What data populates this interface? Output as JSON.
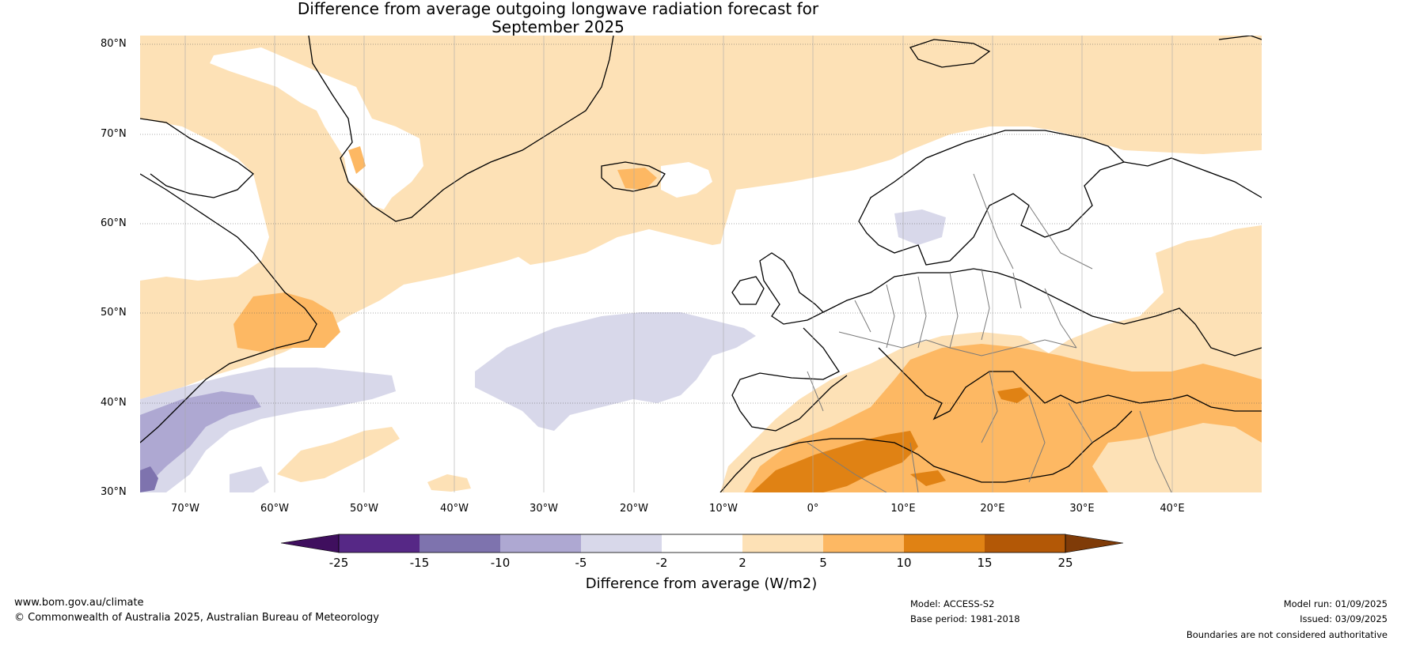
{
  "title": {
    "line1": "Difference from average outgoing longwave radiation forecast for",
    "line2": "September 2025"
  },
  "map": {
    "lat_labels": [
      "80°N",
      "70°N",
      "60°N",
      "50°N",
      "40°N",
      "30°N"
    ],
    "lon_labels": [
      "70°W",
      "60°W",
      "50°W",
      "40°W",
      "30°W",
      "20°W",
      "10°W",
      "0°",
      "10°E",
      "20°E",
      "30°E",
      "40°E"
    ],
    "colors": {
      "neg25": "#3f0f5e",
      "neg15": "#562886",
      "neg10": "#7e73ae",
      "neg5": "#aea8d2",
      "neg2": "#d8d8ea",
      "neutral": "#ffffff",
      "pos2": "#fde1b6",
      "pos5": "#fdb863",
      "pos10": "#e08214",
      "pos15": "#b35806",
      "pos25": "#7f3b08",
      "coast": "#000000",
      "border": "#7a7a7a",
      "grid": "#555555"
    }
  },
  "colorbar": {
    "ticks": [
      "-25",
      "-15",
      "-10",
      "-5",
      "-2",
      "2",
      "5",
      "10",
      "15",
      "25"
    ],
    "label": "Difference from average (W/m2)"
  },
  "footer": {
    "website": "www.bom.gov.au/climate",
    "copyright": "© Commonwealth of Australia 2025, Australian Bureau of Meteorology",
    "model": "Model: ACCESS-S2",
    "base_period": "Base period: 1981-2018",
    "model_run": "Model run: 01/09/2025",
    "issued": "Issued: 03/09/2025",
    "disclaimer": "Boundaries are not considered authoritative"
  }
}
